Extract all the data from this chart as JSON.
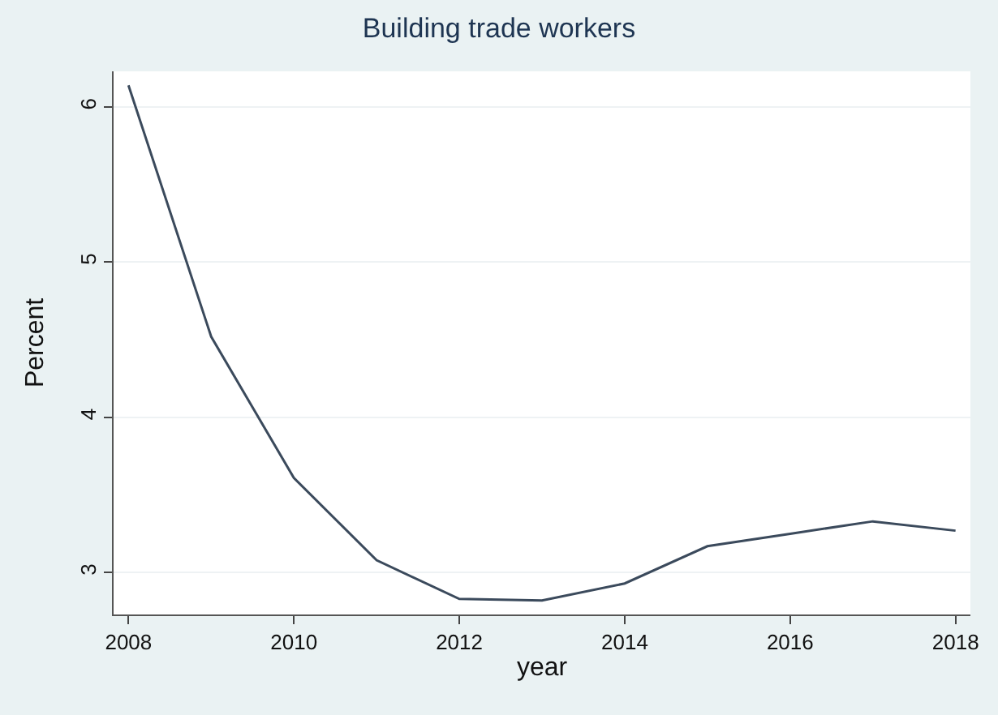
{
  "chart_data": {
    "type": "line",
    "title": "Building trade workers",
    "xlabel": "year",
    "ylabel": "Percent",
    "x": [
      2008,
      2009,
      2010,
      2011,
      2012,
      2013,
      2014,
      2015,
      2016,
      2017,
      2018
    ],
    "series": [
      {
        "color": "#3b4a5c",
        "values": [
          6.14,
          4.52,
          3.61,
          3.08,
          2.83,
          2.82,
          2.93,
          3.17,
          3.25,
          3.33,
          3.27
        ]
      }
    ],
    "xlim": [
      2007.82,
      2018.18
    ],
    "xticks": [
      2008,
      2010,
      2012,
      2014,
      2016,
      2018
    ],
    "ylim": [
      2.73,
      6.23
    ],
    "yticks": [
      3,
      4,
      5,
      6
    ],
    "grid": "y",
    "legend": false,
    "marker": "none",
    "line_style": "solid"
  }
}
